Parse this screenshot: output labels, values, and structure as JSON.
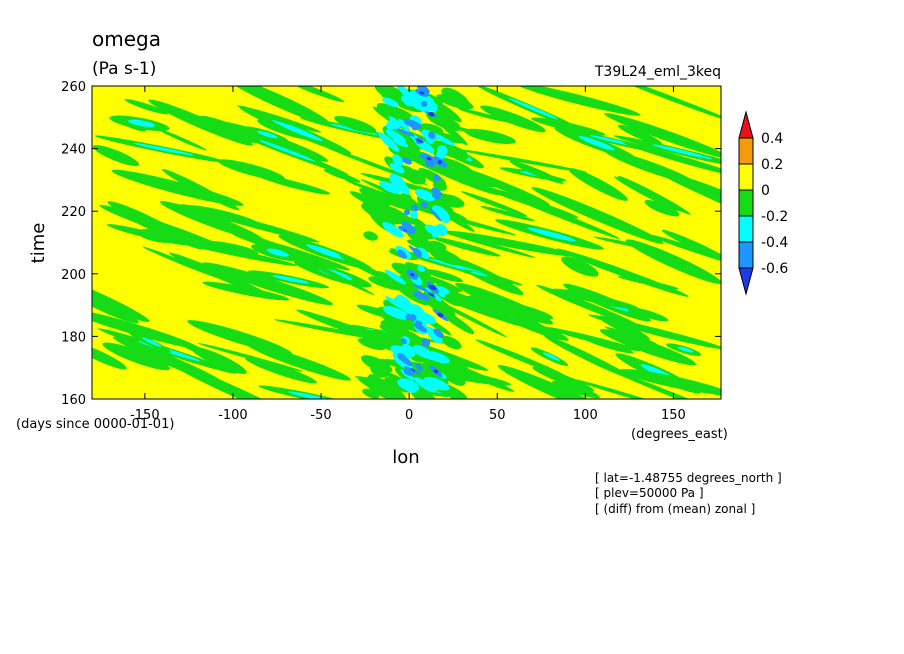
{
  "figure": {
    "title": "omega",
    "units": "(Pa s-1)",
    "run_label": "T39L24_eml_3keq",
    "x_units": "(degrees_east)",
    "y_units": "(days since 0000-01-01)",
    "annotations": [
      "[ lat=-1.48755 degrees_north ]",
      "[ plev=50000 Pa ]",
      "[ (diff) from (mean) zonal ]"
    ]
  },
  "chart_data": {
    "type": "heatmap",
    "title": "omega",
    "units": "(Pa s-1)",
    "xlabel": "lon",
    "ylabel": "time",
    "xlim": [
      -180,
      177
    ],
    "ylim": [
      160,
      260
    ],
    "x_ticks": [
      {
        "value": -150,
        "label": "-150"
      },
      {
        "value": -100,
        "label": "-100"
      },
      {
        "value": -50,
        "label": "-50"
      },
      {
        "value": 0,
        "label": "0"
      },
      {
        "value": 50,
        "label": "50"
      },
      {
        "value": 100,
        "label": "100"
      },
      {
        "value": 150,
        "label": "150"
      }
    ],
    "y_ticks": [
      {
        "value": 160,
        "label": "160"
      },
      {
        "value": 180,
        "label": "180"
      },
      {
        "value": 200,
        "label": "200"
      },
      {
        "value": 220,
        "label": "220"
      },
      {
        "value": 240,
        "label": "240"
      },
      {
        "value": 260,
        "label": "260"
      }
    ],
    "colorbar": {
      "levels": [
        "0.4",
        "0.2",
        "0",
        "-0.2",
        "-0.4",
        "-0.6"
      ],
      "level_values": [
        0.4,
        0.2,
        0,
        -0.2,
        -0.4,
        -0.6
      ],
      "bands": [
        {
          "range": [
            0.4,
            0.6
          ],
          "color": "#e8121f"
        },
        {
          "range": [
            0.2,
            0.4
          ],
          "color": "#f59a0c"
        },
        {
          "range": [
            0.0,
            0.2
          ],
          "color": "#ffff00"
        },
        {
          "range": [
            -0.2,
            0.0
          ],
          "color": "#16dc16"
        },
        {
          "range": [
            -0.4,
            -0.2
          ],
          "color": "#00ffff"
        },
        {
          "range": [
            -0.6,
            -0.4
          ],
          "color": "#1e96ff"
        },
        {
          "range": [
            -0.8,
            -0.6
          ],
          "color": "#1d3ce8"
        }
      ]
    },
    "features": [
      {
        "name": "convective band near 0 lon",
        "lon_range": [
          -20,
          25
        ],
        "time_range": [
          160,
          260
        ],
        "min_value": -0.7
      },
      {
        "name": "westward-propagating negative anomalies",
        "orientation": "diagonal",
        "min_value": -0.4
      }
    ]
  }
}
